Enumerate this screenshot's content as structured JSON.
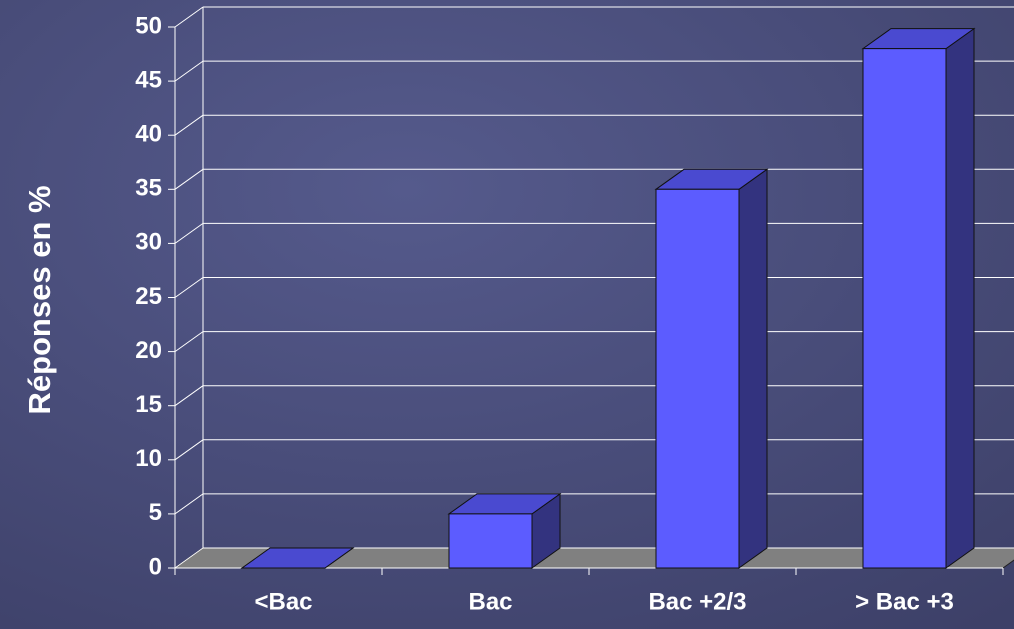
{
  "chart_data": {
    "type": "bar3d",
    "ylabel": "Réponses en %",
    "categories": [
      "<Bac",
      "Bac",
      "Bac +2/3",
      "> Bac +3"
    ],
    "values": [
      0,
      5,
      35,
      48
    ],
    "color": "#5c5cff",
    "ylim": [
      0,
      50
    ],
    "yticks": [
      0,
      5,
      10,
      15,
      20,
      25,
      30,
      35,
      40,
      45,
      50
    ],
    "grid": true
  }
}
